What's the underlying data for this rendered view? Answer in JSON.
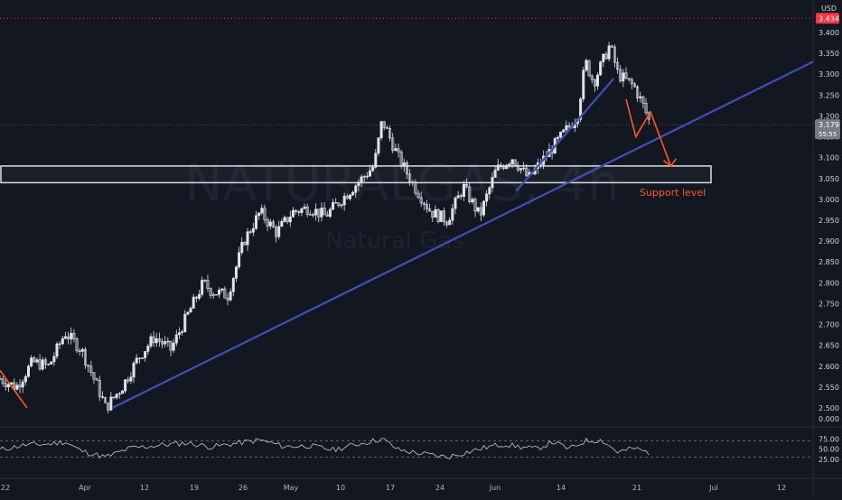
{
  "chart_data": {
    "type": "candlestick",
    "watermark_symbol": "NATURALGAS, 4h",
    "watermark_name": "Natural Gas",
    "currency": "USD",
    "price_axis": {
      "min": 2.5,
      "max": 3.434,
      "ticks": [
        "3.400",
        "3.350",
        "3.300",
        "3.250",
        "3.200",
        "3.150",
        "3.100",
        "3.050",
        "3.000",
        "2.950",
        "2.900",
        "2.850",
        "2.800",
        "2.750",
        "2.700",
        "2.650",
        "2.600",
        "2.550",
        "2.500"
      ]
    },
    "x_axis_labels": [
      "22",
      "Apr",
      "12",
      "19",
      "26",
      "May",
      "10",
      "17",
      "24",
      "Jun",
      "14",
      "21",
      "Jul",
      "12"
    ],
    "last_price": {
      "value": "3.179",
      "countdown": "55:55"
    },
    "high_marker": {
      "value": "3.434"
    },
    "oscillator_zero": "0.000",
    "oscillator": {
      "ticks": [
        "75.00",
        "50.00",
        "25.00"
      ],
      "upper_band": 70,
      "lower_band": 30
    },
    "price_path": [
      [
        0.0,
        2.57
      ],
      [
        0.02,
        2.55
      ],
      [
        0.04,
        2.61
      ],
      [
        0.06,
        2.6
      ],
      [
        0.08,
        2.68
      ],
      [
        0.1,
        2.64
      ],
      [
        0.12,
        2.55
      ],
      [
        0.13,
        2.5
      ],
      [
        0.15,
        2.55
      ],
      [
        0.17,
        2.62
      ],
      [
        0.19,
        2.67
      ],
      [
        0.21,
        2.64
      ],
      [
        0.23,
        2.72
      ],
      [
        0.25,
        2.8
      ],
      [
        0.26,
        2.78
      ],
      [
        0.28,
        2.77
      ],
      [
        0.3,
        2.9
      ],
      [
        0.32,
        2.97
      ],
      [
        0.34,
        2.92
      ],
      [
        0.36,
        2.97
      ],
      [
        0.38,
        2.98
      ],
      [
        0.4,
        2.96
      ],
      [
        0.42,
        3.0
      ],
      [
        0.44,
        3.04
      ],
      [
        0.46,
        3.08
      ],
      [
        0.47,
        3.19
      ],
      [
        0.49,
        3.1
      ],
      [
        0.51,
        3.03
      ],
      [
        0.53,
        2.97
      ],
      [
        0.55,
        2.95
      ],
      [
        0.57,
        3.03
      ],
      [
        0.59,
        2.96
      ],
      [
        0.61,
        3.07
      ],
      [
        0.63,
        3.1
      ],
      [
        0.65,
        3.05
      ],
      [
        0.67,
        3.1
      ],
      [
        0.69,
        3.15
      ],
      [
        0.71,
        3.2
      ],
      [
        0.72,
        3.33
      ],
      [
        0.73,
        3.28
      ],
      [
        0.75,
        3.37
      ],
      [
        0.76,
        3.3
      ],
      [
        0.78,
        3.27
      ],
      [
        0.79,
        3.23
      ],
      [
        0.8,
        3.18
      ]
    ],
    "oscillator_path": [
      [
        0.0,
        48
      ],
      [
        0.03,
        60
      ],
      [
        0.06,
        62
      ],
      [
        0.08,
        68
      ],
      [
        0.1,
        45
      ],
      [
        0.13,
        30
      ],
      [
        0.16,
        52
      ],
      [
        0.2,
        60
      ],
      [
        0.23,
        65
      ],
      [
        0.26,
        55
      ],
      [
        0.29,
        64
      ],
      [
        0.32,
        72
      ],
      [
        0.35,
        56
      ],
      [
        0.38,
        58
      ],
      [
        0.41,
        48
      ],
      [
        0.44,
        62
      ],
      [
        0.47,
        75
      ],
      [
        0.49,
        48
      ],
      [
        0.52,
        38
      ],
      [
        0.55,
        30
      ],
      [
        0.58,
        45
      ],
      [
        0.6,
        55
      ],
      [
        0.62,
        62
      ],
      [
        0.64,
        55
      ],
      [
        0.66,
        50
      ],
      [
        0.68,
        68
      ],
      [
        0.7,
        50
      ],
      [
        0.72,
        70
      ],
      [
        0.74,
        72
      ],
      [
        0.76,
        42
      ],
      [
        0.78,
        52
      ],
      [
        0.8,
        40
      ]
    ],
    "support_zone": {
      "top": 3.08,
      "bottom": 3.04
    },
    "trendlines": [
      {
        "from": [
          0.138,
          2.5
        ],
        "to": [
          1.0,
          3.33
        ]
      },
      {
        "from": [
          0.635,
          3.02
        ],
        "to": [
          0.755,
          3.29
        ]
      }
    ],
    "projection_path": [
      [
        0.77,
        3.24
      ],
      [
        0.782,
        3.15
      ],
      [
        0.8,
        3.21
      ],
      [
        0.825,
        3.08
      ]
    ],
    "annotation": {
      "text": "Support level"
    },
    "colors": {
      "background": "#131722",
      "candles": "#e0e3eb",
      "trendline": "#3f51b5",
      "projection": "#ff5722",
      "annotation": "#ff5722",
      "zone": "#cfd2d9",
      "high_line": "#f23645",
      "oscillator": "#c4c7cf"
    }
  }
}
